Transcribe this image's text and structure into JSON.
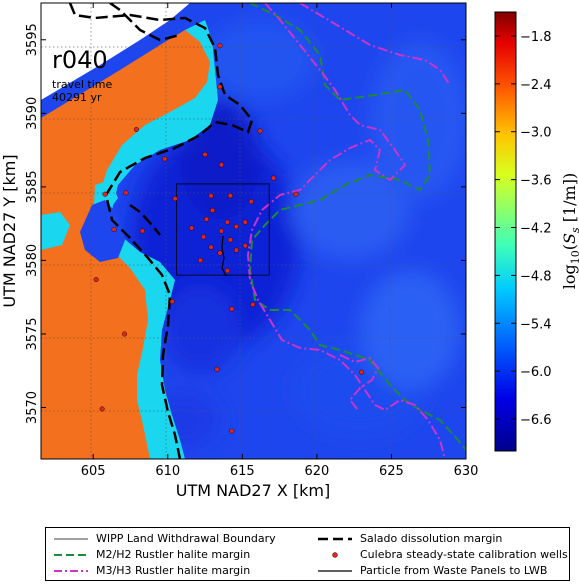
{
  "figure": {
    "panel_label": "r040",
    "travel_time_label": "travel time",
    "travel_time_value": "40291 yr",
    "xlabel": "UTM NAD27 X [km]",
    "ylabel": "UTM NAD27 Y [km]",
    "colorbar_label": "log10(Ss [1/m])",
    "colorbar_label_parts": {
      "log": "log",
      "sub": "10",
      "open": "(",
      "s": "S",
      "ssub": "s",
      "unit": " [1/m])"
    }
  },
  "map_data": {
    "type": "heatmap",
    "xlim": [
      601.5,
      630
    ],
    "ylim": [
      3566.5,
      3597.5
    ],
    "x_ticks": [
      605,
      610,
      615,
      620,
      625,
      630
    ],
    "y_ticks": [
      3570,
      3575,
      3580,
      3585,
      3590,
      3595
    ],
    "grid": true,
    "colorbar_ticks": [
      "-1.8",
      "-2.4",
      "-3.0",
      "-3.6",
      "-4.2",
      "-4.8",
      "-5.4",
      "-6.0",
      "-6.6"
    ],
    "colorbar_range": [
      -7.0,
      -1.5
    ],
    "land_withdrawal_boundary": {
      "x0": 610.6,
      "x1": 616.8,
      "y0": 3579.0,
      "y1": 3585.2
    },
    "wells": [
      [
        613.5,
        3594.6
      ],
      [
        613.5,
        3591.8
      ],
      [
        607.9,
        3588.9
      ],
      [
        609.8,
        3586.9
      ],
      [
        616.2,
        3588.8
      ],
      [
        612.5,
        3587.2
      ],
      [
        613.6,
        3586.5
      ],
      [
        617.1,
        3585.6
      ],
      [
        607.2,
        3584.6
      ],
      [
        605.8,
        3584.5
      ],
      [
        606.4,
        3582.1
      ],
      [
        608.3,
        3582.0
      ],
      [
        610.5,
        3584.2
      ],
      [
        612.9,
        3584.4
      ],
      [
        614.2,
        3584.4
      ],
      [
        615.6,
        3584.0
      ],
      [
        613.0,
        3583.4
      ],
      [
        611.6,
        3582.2
      ],
      [
        612.6,
        3582.8
      ],
      [
        614.0,
        3582.6
      ],
      [
        614.6,
        3582.3
      ],
      [
        615.2,
        3582.6
      ],
      [
        613.6,
        3582.0
      ],
      [
        612.4,
        3581.6
      ],
      [
        612.9,
        3580.9
      ],
      [
        614.2,
        3581.4
      ],
      [
        614.6,
        3580.7
      ],
      [
        615.2,
        3581.0
      ],
      [
        613.5,
        3580.5
      ],
      [
        612.2,
        3580.0
      ],
      [
        614.0,
        3579.3
      ],
      [
        618.6,
        3584.5
      ],
      [
        605.2,
        3578.7
      ],
      [
        610.3,
        3577.2
      ],
      [
        615.7,
        3577.0
      ],
      [
        614.3,
        3576.7
      ],
      [
        607.1,
        3575.0
      ],
      [
        613.3,
        3572.6
      ],
      [
        623.0,
        3572.4
      ],
      [
        605.6,
        3569.9
      ],
      [
        614.3,
        3568.4
      ]
    ]
  },
  "legend": {
    "items": [
      {
        "label": "WIPP Land Withdrawal Boundary"
      },
      {
        "label": "Salado dissolution margin"
      },
      {
        "label": "M2/H2 Rustler halite margin"
      },
      {
        "label": "Culebra steady-state calibration wells"
      },
      {
        "label": "M3/H3 Rustler halite margin"
      },
      {
        "label": "Particle from Waste Panels to LWB"
      }
    ]
  },
  "colors": {
    "background_blue": "#1e46ee",
    "deep_blue": "#0c22d6",
    "cyan": "#1ad6ee",
    "orange": "#f2701e",
    "salado": "#000000",
    "m2h2": "#1b8a3a",
    "m3h3": "#cc33cc",
    "well": "#e3241b"
  }
}
